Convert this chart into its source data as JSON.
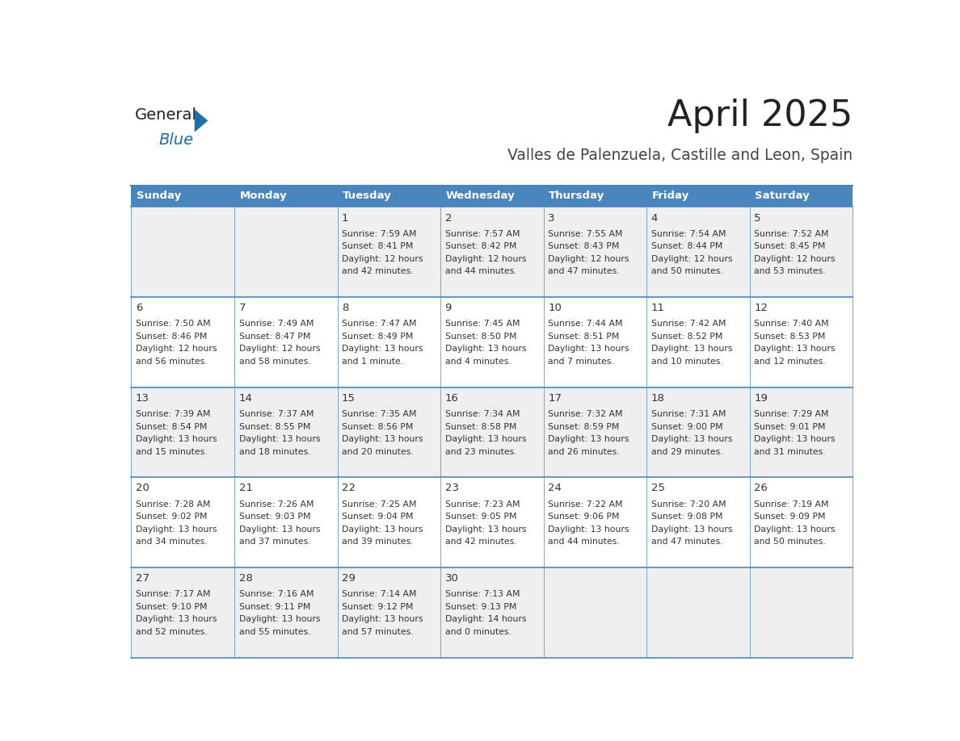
{
  "title": "April 2025",
  "subtitle": "Valles de Palenzuela, Castille and Leon, Spain",
  "header_bg_color": "#4a86be",
  "header_text_color": "#ffffff",
  "cell_bg_color_light": "#efefef",
  "cell_bg_color_white": "#ffffff",
  "text_color": "#333333",
  "day_headers": [
    "Sunday",
    "Monday",
    "Tuesday",
    "Wednesday",
    "Thursday",
    "Friday",
    "Saturday"
  ],
  "title_color": "#222222",
  "subtitle_color": "#444444",
  "logo_dark_color": "#222222",
  "logo_blue_color": "#1a6fad",
  "border_color": "#4a86be",
  "fig_width": 11.88,
  "fig_height": 9.18,
  "days": [
    {
      "day": null,
      "col": 0,
      "row": 0,
      "sunrise": null,
      "sunset": null,
      "daylight_hrs": null,
      "daylight_min": null
    },
    {
      "day": null,
      "col": 1,
      "row": 0,
      "sunrise": null,
      "sunset": null,
      "daylight_hrs": null,
      "daylight_min": null
    },
    {
      "day": 1,
      "col": 2,
      "row": 0,
      "sunrise": "7:59 AM",
      "sunset": "8:41 PM",
      "daylight_hrs": 12,
      "daylight_min": 42
    },
    {
      "day": 2,
      "col": 3,
      "row": 0,
      "sunrise": "7:57 AM",
      "sunset": "8:42 PM",
      "daylight_hrs": 12,
      "daylight_min": 44
    },
    {
      "day": 3,
      "col": 4,
      "row": 0,
      "sunrise": "7:55 AM",
      "sunset": "8:43 PM",
      "daylight_hrs": 12,
      "daylight_min": 47
    },
    {
      "day": 4,
      "col": 5,
      "row": 0,
      "sunrise": "7:54 AM",
      "sunset": "8:44 PM",
      "daylight_hrs": 12,
      "daylight_min": 50
    },
    {
      "day": 5,
      "col": 6,
      "row": 0,
      "sunrise": "7:52 AM",
      "sunset": "8:45 PM",
      "daylight_hrs": 12,
      "daylight_min": 53
    },
    {
      "day": 6,
      "col": 0,
      "row": 1,
      "sunrise": "7:50 AM",
      "sunset": "8:46 PM",
      "daylight_hrs": 12,
      "daylight_min": 56
    },
    {
      "day": 7,
      "col": 1,
      "row": 1,
      "sunrise": "7:49 AM",
      "sunset": "8:47 PM",
      "daylight_hrs": 12,
      "daylight_min": 58
    },
    {
      "day": 8,
      "col": 2,
      "row": 1,
      "sunrise": "7:47 AM",
      "sunset": "8:49 PM",
      "daylight_hrs": 13,
      "daylight_min": 1
    },
    {
      "day": 9,
      "col": 3,
      "row": 1,
      "sunrise": "7:45 AM",
      "sunset": "8:50 PM",
      "daylight_hrs": 13,
      "daylight_min": 4
    },
    {
      "day": 10,
      "col": 4,
      "row": 1,
      "sunrise": "7:44 AM",
      "sunset": "8:51 PM",
      "daylight_hrs": 13,
      "daylight_min": 7
    },
    {
      "day": 11,
      "col": 5,
      "row": 1,
      "sunrise": "7:42 AM",
      "sunset": "8:52 PM",
      "daylight_hrs": 13,
      "daylight_min": 10
    },
    {
      "day": 12,
      "col": 6,
      "row": 1,
      "sunrise": "7:40 AM",
      "sunset": "8:53 PM",
      "daylight_hrs": 13,
      "daylight_min": 12
    },
    {
      "day": 13,
      "col": 0,
      "row": 2,
      "sunrise": "7:39 AM",
      "sunset": "8:54 PM",
      "daylight_hrs": 13,
      "daylight_min": 15
    },
    {
      "day": 14,
      "col": 1,
      "row": 2,
      "sunrise": "7:37 AM",
      "sunset": "8:55 PM",
      "daylight_hrs": 13,
      "daylight_min": 18
    },
    {
      "day": 15,
      "col": 2,
      "row": 2,
      "sunrise": "7:35 AM",
      "sunset": "8:56 PM",
      "daylight_hrs": 13,
      "daylight_min": 20
    },
    {
      "day": 16,
      "col": 3,
      "row": 2,
      "sunrise": "7:34 AM",
      "sunset": "8:58 PM",
      "daylight_hrs": 13,
      "daylight_min": 23
    },
    {
      "day": 17,
      "col": 4,
      "row": 2,
      "sunrise": "7:32 AM",
      "sunset": "8:59 PM",
      "daylight_hrs": 13,
      "daylight_min": 26
    },
    {
      "day": 18,
      "col": 5,
      "row": 2,
      "sunrise": "7:31 AM",
      "sunset": "9:00 PM",
      "daylight_hrs": 13,
      "daylight_min": 29
    },
    {
      "day": 19,
      "col": 6,
      "row": 2,
      "sunrise": "7:29 AM",
      "sunset": "9:01 PM",
      "daylight_hrs": 13,
      "daylight_min": 31
    },
    {
      "day": 20,
      "col": 0,
      "row": 3,
      "sunrise": "7:28 AM",
      "sunset": "9:02 PM",
      "daylight_hrs": 13,
      "daylight_min": 34
    },
    {
      "day": 21,
      "col": 1,
      "row": 3,
      "sunrise": "7:26 AM",
      "sunset": "9:03 PM",
      "daylight_hrs": 13,
      "daylight_min": 37
    },
    {
      "day": 22,
      "col": 2,
      "row": 3,
      "sunrise": "7:25 AM",
      "sunset": "9:04 PM",
      "daylight_hrs": 13,
      "daylight_min": 39
    },
    {
      "day": 23,
      "col": 3,
      "row": 3,
      "sunrise": "7:23 AM",
      "sunset": "9:05 PM",
      "daylight_hrs": 13,
      "daylight_min": 42
    },
    {
      "day": 24,
      "col": 4,
      "row": 3,
      "sunrise": "7:22 AM",
      "sunset": "9:06 PM",
      "daylight_hrs": 13,
      "daylight_min": 44
    },
    {
      "day": 25,
      "col": 5,
      "row": 3,
      "sunrise": "7:20 AM",
      "sunset": "9:08 PM",
      "daylight_hrs": 13,
      "daylight_min": 47
    },
    {
      "day": 26,
      "col": 6,
      "row": 3,
      "sunrise": "7:19 AM",
      "sunset": "9:09 PM",
      "daylight_hrs": 13,
      "daylight_min": 50
    },
    {
      "day": 27,
      "col": 0,
      "row": 4,
      "sunrise": "7:17 AM",
      "sunset": "9:10 PM",
      "daylight_hrs": 13,
      "daylight_min": 52
    },
    {
      "day": 28,
      "col": 1,
      "row": 4,
      "sunrise": "7:16 AM",
      "sunset": "9:11 PM",
      "daylight_hrs": 13,
      "daylight_min": 55
    },
    {
      "day": 29,
      "col": 2,
      "row": 4,
      "sunrise": "7:14 AM",
      "sunset": "9:12 PM",
      "daylight_hrs": 13,
      "daylight_min": 57
    },
    {
      "day": 30,
      "col": 3,
      "row": 4,
      "sunrise": "7:13 AM",
      "sunset": "9:13 PM",
      "daylight_hrs": 14,
      "daylight_min": 0
    },
    {
      "day": null,
      "col": 4,
      "row": 4,
      "sunrise": null,
      "sunset": null,
      "daylight_hrs": null,
      "daylight_min": null
    },
    {
      "day": null,
      "col": 5,
      "row": 4,
      "sunrise": null,
      "sunset": null,
      "daylight_hrs": null,
      "daylight_min": null
    },
    {
      "day": null,
      "col": 6,
      "row": 4,
      "sunrise": null,
      "sunset": null,
      "daylight_hrs": null,
      "daylight_min": null
    }
  ]
}
